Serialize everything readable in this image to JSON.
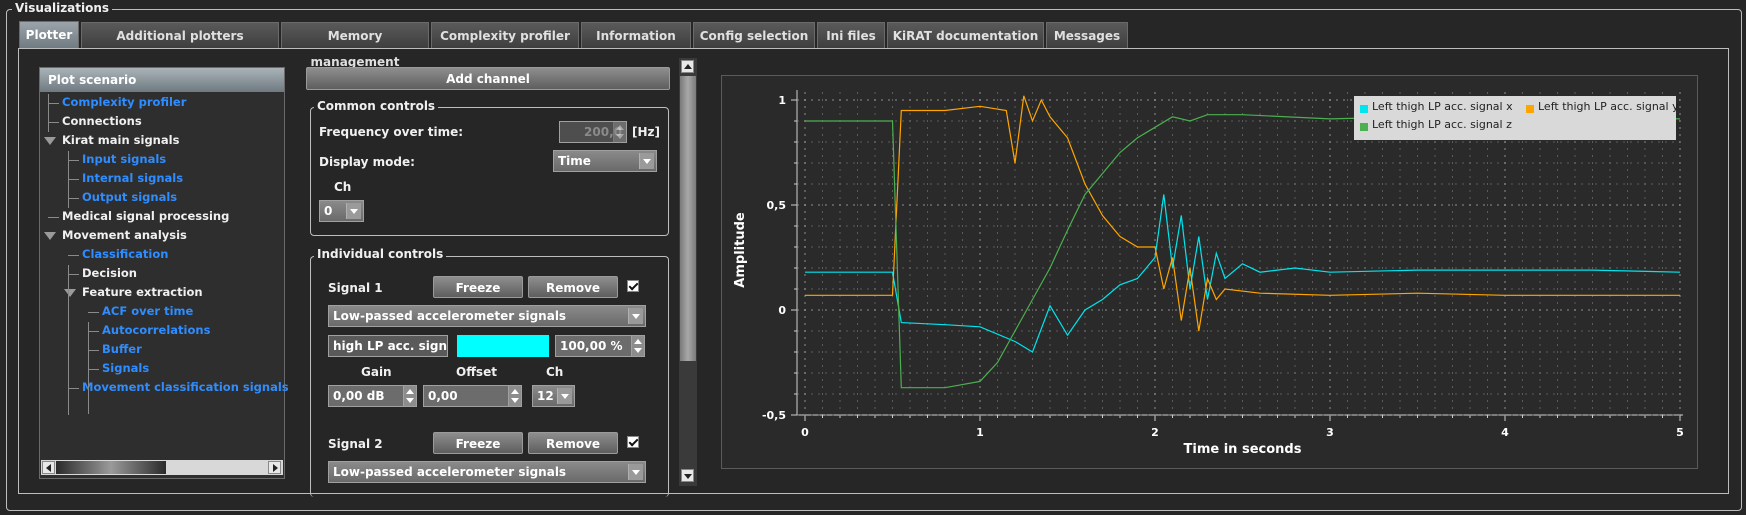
{
  "window": {
    "group_title": "Visualizations"
  },
  "tabs": [
    {
      "label": "Plotter",
      "active": true
    },
    {
      "label": "Additional plotters"
    },
    {
      "label": "Memory management"
    },
    {
      "label": "Complexity profiler"
    },
    {
      "label": "Information"
    },
    {
      "label": "Config selection"
    },
    {
      "label": "Ini files"
    },
    {
      "label": "KiRAT documentation"
    },
    {
      "label": "Messages"
    }
  ],
  "tree": {
    "header": "Plot scenario",
    "items": [
      {
        "label": "Complexity profiler",
        "style": "link"
      },
      {
        "label": "Connections",
        "style": "plain"
      },
      {
        "label": "Kirat main signals",
        "style": "plain",
        "expanded": true
      },
      {
        "label": "Input signals",
        "style": "link"
      },
      {
        "label": "Internal signals",
        "style": "link"
      },
      {
        "label": "Output signals",
        "style": "link"
      },
      {
        "label": "Medical signal processing",
        "style": "plain"
      },
      {
        "label": "Movement analysis",
        "style": "plain",
        "expanded": true
      },
      {
        "label": "Classification",
        "style": "link"
      },
      {
        "label": "Decision",
        "style": "plain"
      },
      {
        "label": "Feature extraction",
        "style": "plain",
        "expanded": true
      },
      {
        "label": "ACF over time",
        "style": "link"
      },
      {
        "label": "Autocorrelations",
        "style": "link"
      },
      {
        "label": "Buffer",
        "style": "link"
      },
      {
        "label": "Signals",
        "style": "link"
      },
      {
        "label": "Movement classification signals",
        "style": "link"
      }
    ]
  },
  "controls": {
    "add_channel": "Add channel",
    "common": {
      "title": "Common controls",
      "freq_label": "Frequency over time:",
      "freq_value": "200,0",
      "freq_unit": "[Hz]",
      "display_mode_label": "Display mode:",
      "display_mode_value": "Time",
      "ch_label": "Ch",
      "ch_value": "0"
    },
    "individual": {
      "title": "Individual controls",
      "gain_label": "Gain",
      "offset_label": "Offset",
      "ch_label": "Ch",
      "signals": [
        {
          "name": "Signal 1",
          "freeze": "Freeze",
          "remove": "Remove",
          "checked": true,
          "source": "Low-passed accelerometer signals",
          "channel_name": "high LP acc. signal x",
          "color": "#00ffff",
          "scale": "100,00 %",
          "gain": "0,00 dB",
          "offset": "0,00",
          "ch": "12"
        },
        {
          "name": "Signal 2",
          "freeze": "Freeze",
          "remove": "Remove",
          "checked": true,
          "source": "Low-passed accelerometer signals"
        }
      ]
    }
  },
  "colors": {
    "signal_x": "#00e5ee",
    "signal_y": "#ffa500",
    "signal_z": "#4caf50"
  },
  "chart_data": {
    "type": "line",
    "xlabel": "Time in seconds",
    "ylabel": "Amplitude",
    "xlim": [
      0,
      5
    ],
    "ylim": [
      -0.5,
      1
    ],
    "xticks": [
      "0",
      "1",
      "2",
      "3",
      "4",
      "5"
    ],
    "yticks": [
      "-0,5",
      "0",
      "0,5",
      "1"
    ],
    "ytick_values": [
      -0.5,
      0,
      0.5,
      1
    ],
    "grid": true,
    "legend_position": "top-right",
    "series": [
      {
        "name": "Left thigh LP acc. signal x",
        "color": "#00e5ee",
        "x": [
          0,
          0.5,
          0.55,
          0.8,
          1.0,
          1.2,
          1.3,
          1.4,
          1.5,
          1.6,
          1.7,
          1.8,
          1.9,
          2.0,
          2.05,
          2.1,
          2.15,
          2.2,
          2.25,
          2.3,
          2.35,
          2.4,
          2.5,
          2.6,
          2.8,
          3.0,
          3.5,
          4.0,
          4.5,
          5.0
        ],
        "y": [
          0.18,
          0.18,
          -0.06,
          -0.07,
          -0.08,
          -0.15,
          -0.2,
          0.02,
          -0.12,
          0.0,
          0.05,
          0.12,
          0.15,
          0.25,
          0.55,
          0.2,
          0.45,
          0.1,
          0.35,
          0.05,
          0.27,
          0.15,
          0.22,
          0.18,
          0.2,
          0.18,
          0.19,
          0.19,
          0.19,
          0.18
        ]
      },
      {
        "name": "Left thigh LP acc. signal y",
        "color": "#ffa500",
        "x": [
          0,
          0.5,
          0.55,
          0.8,
          1.0,
          1.15,
          1.2,
          1.25,
          1.3,
          1.35,
          1.4,
          1.5,
          1.6,
          1.7,
          1.8,
          1.9,
          2.0,
          2.05,
          2.1,
          2.15,
          2.2,
          2.25,
          2.3,
          2.35,
          2.4,
          2.6,
          3.0,
          3.5,
          4.0,
          4.5,
          5.0
        ],
        "y": [
          0.07,
          0.07,
          0.95,
          0.95,
          0.97,
          0.95,
          0.7,
          1.02,
          0.9,
          1.0,
          0.92,
          0.82,
          0.6,
          0.45,
          0.35,
          0.3,
          0.3,
          0.1,
          0.25,
          -0.05,
          0.2,
          -0.1,
          0.15,
          0.05,
          0.1,
          0.08,
          0.07,
          0.08,
          0.07,
          0.07,
          0.07
        ]
      },
      {
        "name": "Left thigh LP acc. signal z",
        "color": "#4caf50",
        "x": [
          0,
          0.5,
          0.55,
          0.8,
          1.0,
          1.1,
          1.2,
          1.3,
          1.4,
          1.5,
          1.6,
          1.7,
          1.8,
          1.9,
          2.0,
          2.1,
          2.2,
          2.3,
          2.5,
          3.0,
          3.5,
          4.0,
          4.5,
          5.0
        ],
        "y": [
          0.9,
          0.9,
          -0.37,
          -0.37,
          -0.34,
          -0.25,
          -0.1,
          0.05,
          0.2,
          0.38,
          0.55,
          0.65,
          0.75,
          0.82,
          0.87,
          0.92,
          0.9,
          0.93,
          0.93,
          0.91,
          0.92,
          0.92,
          0.92,
          0.91
        ]
      }
    ]
  }
}
